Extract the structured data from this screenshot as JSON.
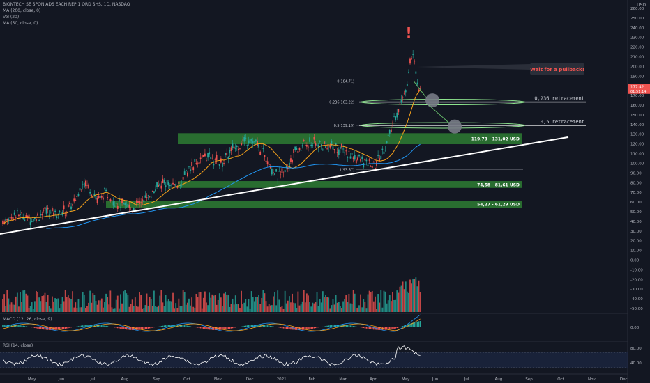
{
  "header": {
    "symbol_line": "BIONTECH SE SPON ADS EACH REP 1 ORD SHS, 1D, NASDAQ",
    "indicators": [
      "MA (200, close, 0)",
      "Vol (20)",
      "MA (50, close, 0)"
    ],
    "currency": "USD"
  },
  "panes": {
    "macd_label": "MACD (12, 26, close, 9)",
    "rsi_label": "RSI (14, close)"
  },
  "colors": {
    "background": "#131722",
    "up": "#26a69a",
    "down": "#ef5350",
    "ma50": "#f7a21b",
    "ma200": "#2196f3",
    "zone": "#2e7d32",
    "text": "#b2b5be"
  },
  "chart_data": {
    "type": "candlestick",
    "x_ticks": [
      "May",
      "Jun",
      "Jul",
      "Aug",
      "Sep",
      "Oct",
      "Nov",
      "Dec",
      "2021",
      "Feb",
      "Mar",
      "Apr",
      "May",
      "Jun",
      "Jul",
      "Aug",
      "Sep",
      "Oct",
      "Nov",
      "Dec"
    ],
    "price_axis": [
      "260.00",
      "250.00",
      "240.00",
      "230.00",
      "220.00",
      "210.00",
      "200.00",
      "190.00",
      "180.00",
      "170.00",
      "160.00",
      "150.00",
      "140.00",
      "130.00",
      "120.00",
      "110.00",
      "100.00",
      "90.00",
      "80.00",
      "70.00",
      "60.00",
      "50.00",
      "40.00",
      "30.00",
      "20.00",
      "10.00",
      "0.00",
      "-10.00",
      "-20.00",
      "-30.00",
      "-40.00",
      "-50.00"
    ],
    "macd_axis": [
      "0.00"
    ],
    "rsi_axis": [
      "80.00",
      "40.00"
    ],
    "price_path": [
      [
        0,
        40
      ],
      [
        10,
        48
      ],
      [
        20,
        42
      ],
      [
        30,
        51
      ],
      [
        40,
        48
      ],
      [
        50,
        60
      ],
      [
        55,
        82
      ],
      [
        60,
        74
      ],
      [
        65,
        62
      ],
      [
        70,
        68
      ],
      [
        80,
        58
      ],
      [
        90,
        54
      ],
      [
        100,
        66
      ],
      [
        110,
        80
      ],
      [
        120,
        76
      ],
      [
        130,
        98
      ],
      [
        140,
        108
      ],
      [
        150,
        100
      ],
      [
        160,
        118
      ],
      [
        170,
        126
      ],
      [
        180,
        110
      ],
      [
        185,
        95
      ],
      [
        190,
        86
      ],
      [
        195,
        94
      ],
      [
        200,
        110
      ],
      [
        210,
        122
      ],
      [
        220,
        118
      ],
      [
        230,
        116
      ],
      [
        240,
        108
      ],
      [
        250,
        100
      ],
      [
        255,
        96
      ],
      [
        260,
        108
      ],
      [
        265,
        125
      ],
      [
        270,
        150
      ],
      [
        275,
        167
      ],
      [
        278,
        185
      ],
      [
        280,
        205
      ],
      [
        282,
        210
      ],
      [
        285,
        185
      ],
      [
        287,
        175
      ]
    ],
    "last_price": "177.42",
    "last_time": "01:51:14",
    "zones": [
      {
        "label": "119,73 - 131,02 USD",
        "low": 119.73,
        "high": 131.02
      },
      {
        "label": "74,58 - 81,61 USD",
        "low": 74.58,
        "high": 81.61
      },
      {
        "label": "54,27 - 61,29 USD",
        "low": 54.27,
        "high": 61.29
      }
    ],
    "fib_levels": [
      {
        "label": "0(184.71)",
        "value": 184.71
      },
      {
        "label": "0.236(163.22)",
        "value": 163.22
      },
      {
        "label": "0.5(139.19)",
        "value": 139.19
      },
      {
        "label": "1(93.67)",
        "value": 93.67
      }
    ],
    "annotations": [
      "0,236 retracement",
      "0,5 retracement",
      "Wait for a pullback!",
      "!"
    ]
  }
}
